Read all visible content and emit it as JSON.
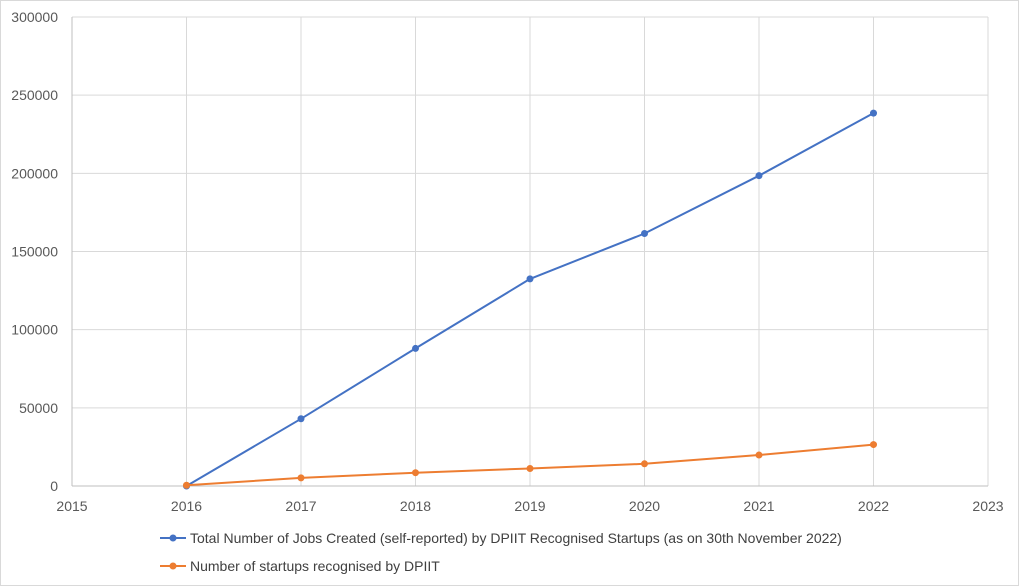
{
  "chart_data": {
    "type": "scatter",
    "title": "",
    "xlabel": "",
    "ylabel": "",
    "xlim": [
      2015,
      2023
    ],
    "ylim": [
      0,
      300000
    ],
    "xticks": [
      "2015",
      "2016",
      "2017",
      "2018",
      "2019",
      "2020",
      "2021",
      "2022",
      "2023"
    ],
    "yticks": [
      "0",
      "50000",
      "100000",
      "150000",
      "200000",
      "250000",
      "300000"
    ],
    "grid": true,
    "legend_position": "bottom",
    "series": [
      {
        "name": "Total Number of Jobs Created (self-reported) by DPIIT Recognised Startups (as on 30th November 2022)",
        "color": "#4472c4",
        "x": [
          2016,
          2017,
          2018,
          2019,
          2020,
          2021,
          2022
        ],
        "y": [
          0,
          43000,
          88000,
          132500,
          161500,
          198500,
          238500
        ]
      },
      {
        "name": "Number of startups recognised by DPIIT",
        "color": "#ed7d31",
        "x": [
          2016,
          2017,
          2018,
          2019,
          2020,
          2021,
          2022
        ],
        "y": [
          500,
          5200,
          8500,
          11200,
          14200,
          19800,
          26500
        ]
      }
    ]
  }
}
